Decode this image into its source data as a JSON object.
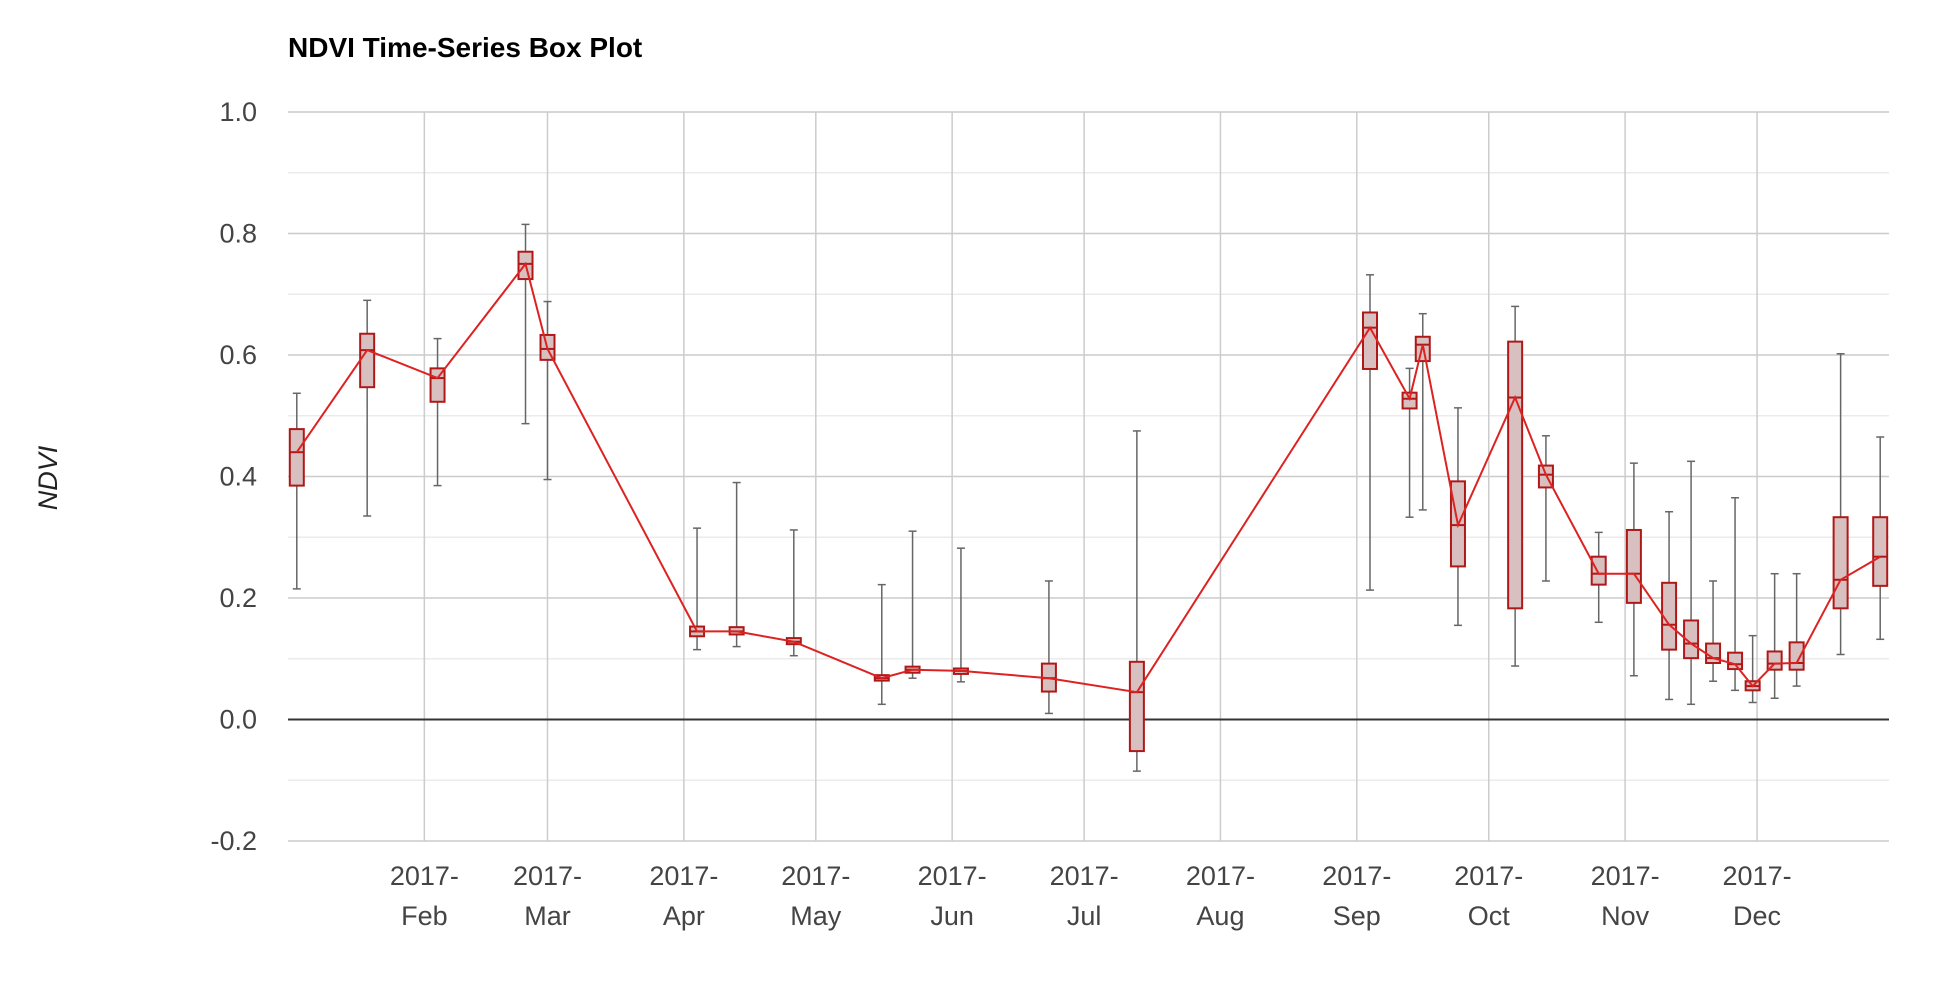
{
  "chart_data": {
    "type": "box",
    "title": "NDVI Time-Series Box Plot",
    "ylabel": "NDVI",
    "xlabel": "",
    "ylim": [
      -0.2,
      1.0
    ],
    "y_ticks": [
      "1.0",
      "0.8",
      "0.6",
      "0.4",
      "0.2",
      "0.0",
      "-0.2"
    ],
    "x_range": [
      "2017-01-01",
      "2017-12-31"
    ],
    "x_ticks": [
      {
        "date": "2017-02-01",
        "line1": "2017-",
        "line2": "Feb"
      },
      {
        "date": "2017-03-01",
        "line1": "2017-",
        "line2": "Mar"
      },
      {
        "date": "2017-04-01",
        "line1": "2017-",
        "line2": "Apr"
      },
      {
        "date": "2017-05-01",
        "line1": "2017-",
        "line2": "May"
      },
      {
        "date": "2017-06-01",
        "line1": "2017-",
        "line2": "Jun"
      },
      {
        "date": "2017-07-01",
        "line1": "2017-",
        "line2": "Jul"
      },
      {
        "date": "2017-08-01",
        "line1": "2017-",
        "line2": "Aug"
      },
      {
        "date": "2017-09-01",
        "line1": "2017-",
        "line2": "Sep"
      },
      {
        "date": "2017-10-01",
        "line1": "2017-",
        "line2": "Oct"
      },
      {
        "date": "2017-11-01",
        "line1": "2017-",
        "line2": "Nov"
      },
      {
        "date": "2017-12-01",
        "line1": "2017-",
        "line2": "Dec"
      }
    ],
    "grid": true,
    "colors": {
      "line": "#dd2222",
      "box_fill": "#d9c0c0",
      "box_stroke": "#b01818",
      "whisker": "#666666",
      "grid_major": "#cccccc",
      "grid_minor": "#ebebeb",
      "zero_line": "#333333"
    },
    "points": [
      {
        "date": "2017-01-03",
        "min": 0.215,
        "q1": 0.385,
        "median": 0.44,
        "q3": 0.478,
        "max": 0.537
      },
      {
        "date": "2017-01-19",
        "min": 0.335,
        "q1": 0.547,
        "median": 0.608,
        "q3": 0.635,
        "max": 0.69
      },
      {
        "date": "2017-02-04",
        "min": 0.385,
        "q1": 0.523,
        "median": 0.562,
        "q3": 0.578,
        "max": 0.627
      },
      {
        "date": "2017-02-24",
        "min": 0.487,
        "q1": 0.725,
        "median": 0.75,
        "q3": 0.77,
        "max": 0.815
      },
      {
        "date": "2017-03-01",
        "min": 0.395,
        "q1": 0.592,
        "median": 0.61,
        "q3": 0.633,
        "max": 0.688
      },
      {
        "date": "2017-04-04",
        "min": 0.115,
        "q1": 0.137,
        "median": 0.145,
        "q3": 0.153,
        "max": 0.315
      },
      {
        "date": "2017-04-13",
        "min": 0.12,
        "q1": 0.14,
        "median": 0.145,
        "q3": 0.152,
        "max": 0.39
      },
      {
        "date": "2017-04-26",
        "min": 0.105,
        "q1": 0.124,
        "median": 0.128,
        "q3": 0.134,
        "max": 0.312
      },
      {
        "date": "2017-05-16",
        "min": 0.025,
        "q1": 0.064,
        "median": 0.068,
        "q3": 0.073,
        "max": 0.222
      },
      {
        "date": "2017-05-23",
        "min": 0.068,
        "q1": 0.077,
        "median": 0.082,
        "q3": 0.087,
        "max": 0.31
      },
      {
        "date": "2017-06-03",
        "min": 0.062,
        "q1": 0.075,
        "median": 0.08,
        "q3": 0.084,
        "max": 0.282
      },
      {
        "date": "2017-06-23",
        "min": 0.01,
        "q1": 0.046,
        "median": 0.068,
        "q3": 0.092,
        "max": 0.228
      },
      {
        "date": "2017-07-13",
        "min": -0.085,
        "q1": -0.052,
        "median": 0.045,
        "q3": 0.095,
        "max": 0.475
      },
      {
        "date": "2017-09-04",
        "min": 0.213,
        "q1": 0.577,
        "median": 0.645,
        "q3": 0.67,
        "max": 0.732
      },
      {
        "date": "2017-09-13",
        "min": 0.333,
        "q1": 0.512,
        "median": 0.528,
        "q3": 0.538,
        "max": 0.578
      },
      {
        "date": "2017-09-16",
        "min": 0.345,
        "q1": 0.59,
        "median": 0.617,
        "q3": 0.63,
        "max": 0.668
      },
      {
        "date": "2017-09-24",
        "min": 0.155,
        "q1": 0.252,
        "median": 0.32,
        "q3": 0.392,
        "max": 0.513
      },
      {
        "date": "2017-10-07",
        "min": 0.088,
        "q1": 0.183,
        "median": 0.53,
        "q3": 0.622,
        "max": 0.68
      },
      {
        "date": "2017-10-14",
        "min": 0.228,
        "q1": 0.382,
        "median": 0.403,
        "q3": 0.418,
        "max": 0.467
      },
      {
        "date": "2017-10-26",
        "min": 0.16,
        "q1": 0.222,
        "median": 0.24,
        "q3": 0.268,
        "max": 0.308
      },
      {
        "date": "2017-11-03",
        "min": 0.072,
        "q1": 0.192,
        "median": 0.24,
        "q3": 0.312,
        "max": 0.422
      },
      {
        "date": "2017-11-11",
        "min": 0.033,
        "q1": 0.115,
        "median": 0.156,
        "q3": 0.225,
        "max": 0.342
      },
      {
        "date": "2017-11-16",
        "min": 0.025,
        "q1": 0.101,
        "median": 0.125,
        "q3": 0.163,
        "max": 0.425
      },
      {
        "date": "2017-11-21",
        "min": 0.063,
        "q1": 0.093,
        "median": 0.101,
        "q3": 0.125,
        "max": 0.228
      },
      {
        "date": "2017-11-26",
        "min": 0.048,
        "q1": 0.083,
        "median": 0.091,
        "q3": 0.11,
        "max": 0.365
      },
      {
        "date": "2017-11-30",
        "min": 0.028,
        "q1": 0.048,
        "median": 0.055,
        "q3": 0.063,
        "max": 0.138
      },
      {
        "date": "2017-12-05",
        "min": 0.035,
        "q1": 0.082,
        "median": 0.092,
        "q3": 0.112,
        "max": 0.24
      },
      {
        "date": "2017-12-10",
        "min": 0.055,
        "q1": 0.082,
        "median": 0.093,
        "q3": 0.127,
        "max": 0.24
      },
      {
        "date": "2017-12-20",
        "min": 0.107,
        "q1": 0.183,
        "median": 0.23,
        "q3": 0.333,
        "max": 0.602
      },
      {
        "date": "2017-12-29",
        "min": 0.132,
        "q1": 0.22,
        "median": 0.268,
        "q3": 0.333,
        "max": 0.465
      }
    ]
  }
}
